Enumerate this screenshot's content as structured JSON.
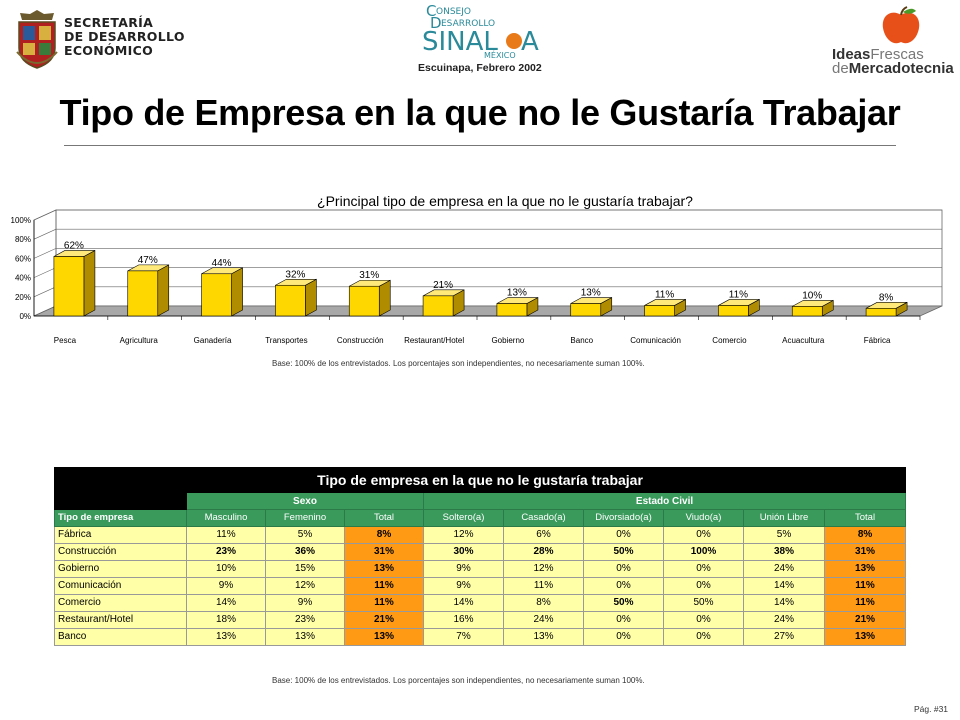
{
  "header": {
    "secretaria_logo_text": [
      "SECRETARÍA",
      "DE DESARROLLO",
      "ECONÓMICO"
    ],
    "subtitle": "Escuinapa, Febrero 2002",
    "ideas_brand": {
      "w1": "Ideas",
      "w2": "Frescas",
      "w3": "de",
      "w4": "Mercadotecnia"
    }
  },
  "page": {
    "title": "Tipo de Empresa en la que no le Gustaría Trabajar",
    "base_note": "Base:   100% de los entrevistados. Los porcentajes son independientes, no necesariamente suman 100%.",
    "page_number": "Pág. #31"
  },
  "chart_data": {
    "type": "bar",
    "title": "¿Principal tipo de empresa en la que no le gustaría trabajar?",
    "categories": [
      "Pesca",
      "Agricultura",
      "Ganadería",
      "Transportes",
      "Construcción",
      "Restaurant/Hotel",
      "Gobierno",
      "Banco",
      "Comunicación",
      "Comercio",
      "Acuacultura",
      "Fábrica"
    ],
    "values": [
      62,
      47,
      44,
      32,
      31,
      21,
      13,
      13,
      11,
      11,
      10,
      8
    ],
    "value_labels": [
      "62%",
      "47%",
      "44%",
      "32%",
      "31%",
      "21%",
      "13%",
      "13%",
      "11%",
      "11%",
      "10%",
      "8%"
    ],
    "yticks": [
      "0%",
      "20%",
      "40%",
      "60%",
      "80%",
      "100%"
    ],
    "ylim": [
      0,
      100
    ],
    "grid": true,
    "bar_color": "#ffd700",
    "bar_side_color": "#b08c00",
    "floor_color": "#a8a8a8"
  },
  "table": {
    "title": "Tipo de empresa en la que no le gustaría trabajar",
    "groups": {
      "sexo": "Sexo",
      "estado_civil": "Estado Civil"
    },
    "row_header": "Tipo de empresa",
    "columns": [
      "Masculino",
      "Femenino",
      "Total",
      "Soltero(a)",
      "Casado(a)",
      "Divorsiado(a)",
      "Viudo(a)",
      "Unión Libre",
      "Total"
    ],
    "rows": [
      {
        "label": "Fábrica",
        "values": [
          "11%",
          "5%",
          "8%",
          "12%",
          "6%",
          "0%",
          "0%",
          "5%",
          "8%"
        ]
      },
      {
        "label": "Construcción",
        "values": [
          "23%",
          "36%",
          "31%",
          "30%",
          "28%",
          "50%",
          "100%",
          "38%",
          "31%"
        ]
      },
      {
        "label": "Gobierno",
        "values": [
          "10%",
          "15%",
          "13%",
          "9%",
          "12%",
          "0%",
          "0%",
          "24%",
          "13%"
        ]
      },
      {
        "label": "Comunicación",
        "values": [
          "9%",
          "12%",
          "11%",
          "9%",
          "11%",
          "0%",
          "0%",
          "14%",
          "11%"
        ]
      },
      {
        "label": "Comercio",
        "values": [
          "14%",
          "9%",
          "11%",
          "14%",
          "8%",
          "50%",
          "50%",
          "14%",
          "11%"
        ]
      },
      {
        "label": "Restaurant/Hotel",
        "values": [
          "18%",
          "23%",
          "21%",
          "16%",
          "24%",
          "0%",
          "0%",
          "24%",
          "21%"
        ]
      },
      {
        "label": "Banco",
        "values": [
          "13%",
          "13%",
          "13%",
          "7%",
          "13%",
          "0%",
          "0%",
          "27%",
          "13%"
        ]
      }
    ],
    "bold_cells": [
      [
        1,
        0
      ],
      [
        1,
        1
      ],
      [
        1,
        3
      ],
      [
        1,
        4
      ],
      [
        1,
        5
      ],
      [
        1,
        6
      ],
      [
        1,
        7
      ],
      [
        4,
        5
      ]
    ]
  }
}
